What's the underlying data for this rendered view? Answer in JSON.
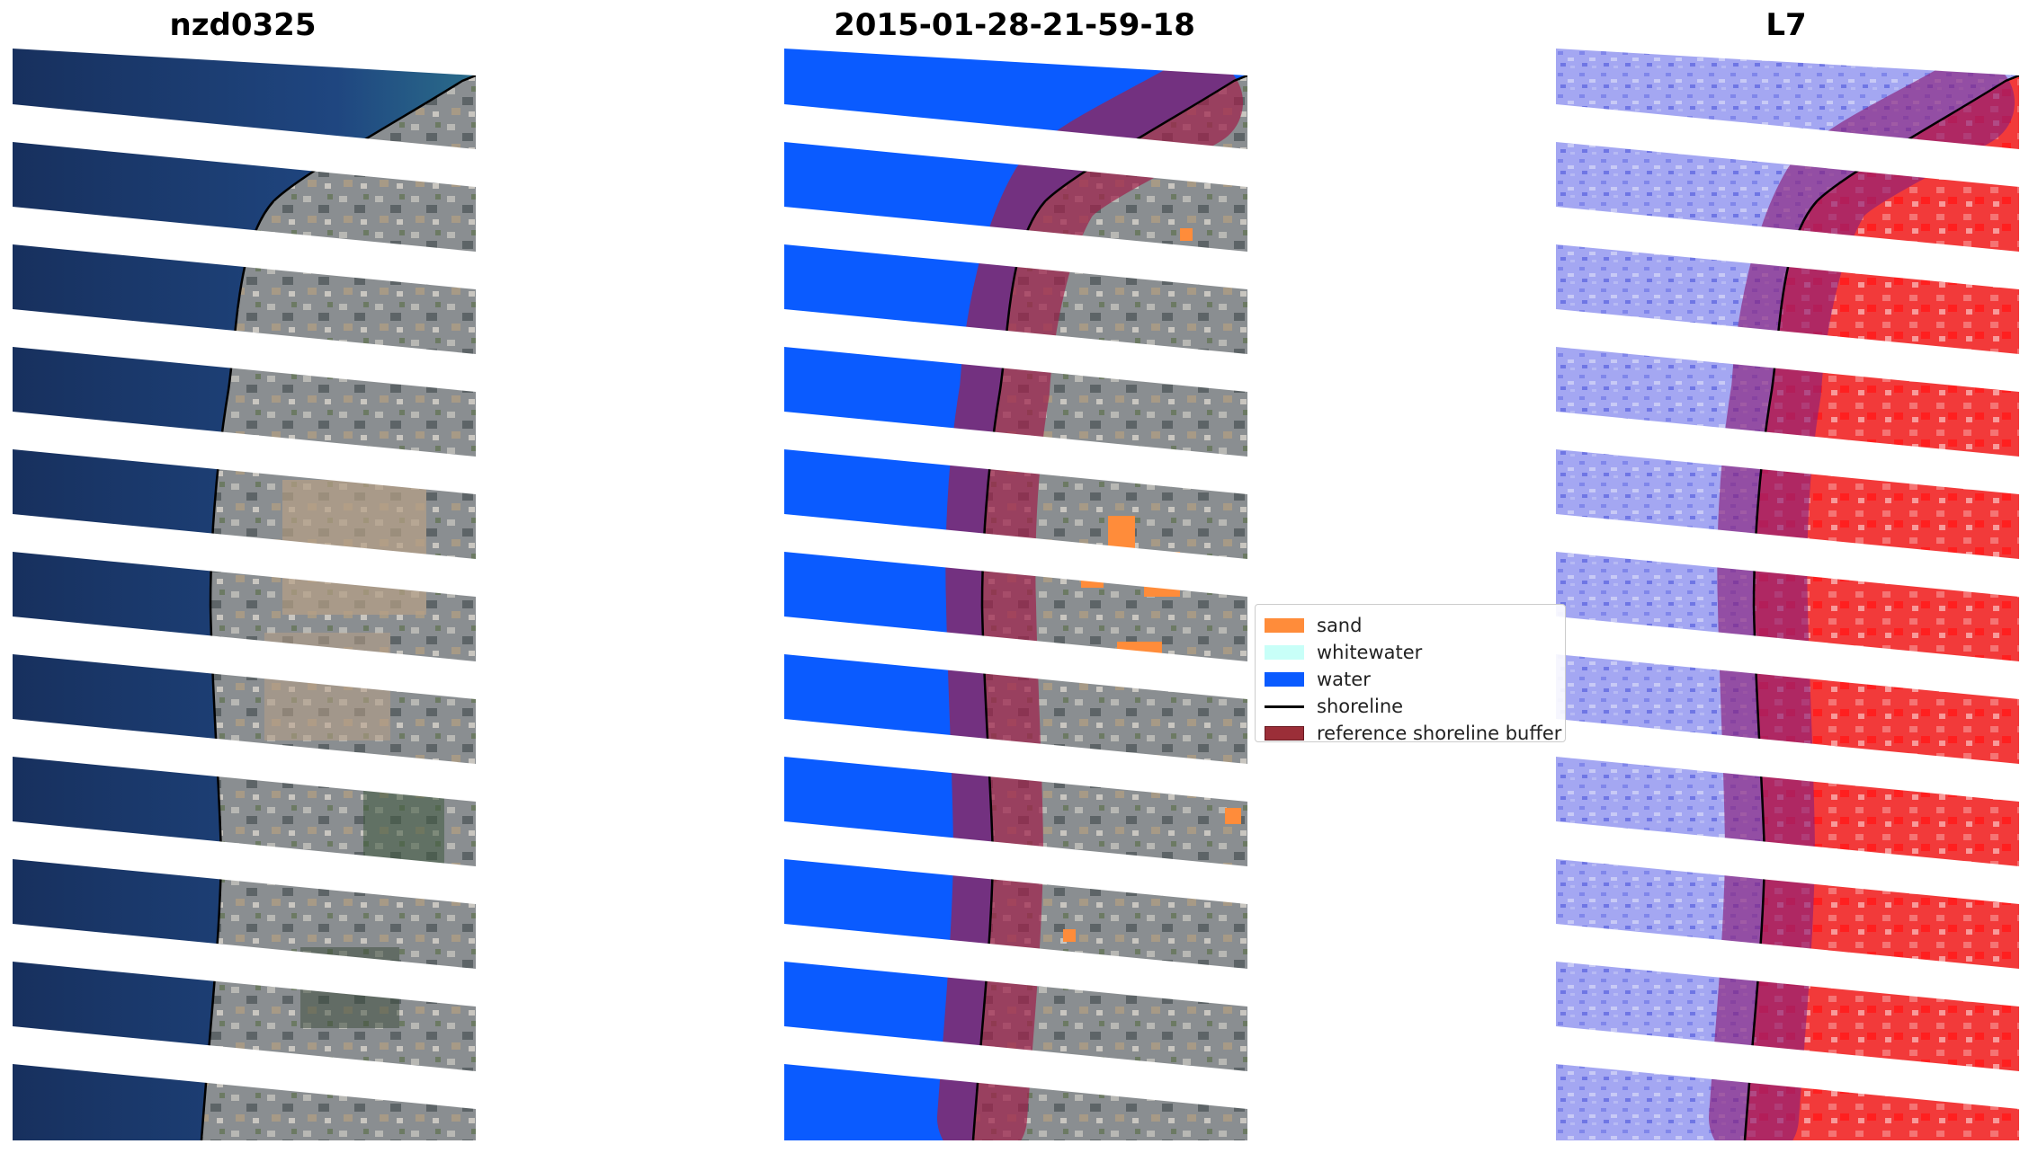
{
  "panels": [
    {
      "title": "nzd0325"
    },
    {
      "title": "2015-01-28-21-59-18"
    },
    {
      "title": "L7"
    }
  ],
  "legend": {
    "items": [
      {
        "label": "sand",
        "type": "patch",
        "color": "#ff8c3a"
      },
      {
        "label": "whitewater",
        "type": "patch",
        "color": "#c8fff8"
      },
      {
        "label": "water",
        "type": "patch",
        "color": "#0a5bff"
      },
      {
        "label": "shoreline",
        "type": "line",
        "color": "#000000"
      },
      {
        "label": "reference shoreline buffer",
        "type": "patch",
        "color": "#9b2e38"
      }
    ]
  },
  "colors": {
    "ocean_rgb": "#1c3a6e",
    "water_class": "#0a5bff",
    "land_rgb": "#8b8f92",
    "buffer": "#a0204a",
    "index_water": "#a3a6f0",
    "index_land": "#f23a3a"
  }
}
